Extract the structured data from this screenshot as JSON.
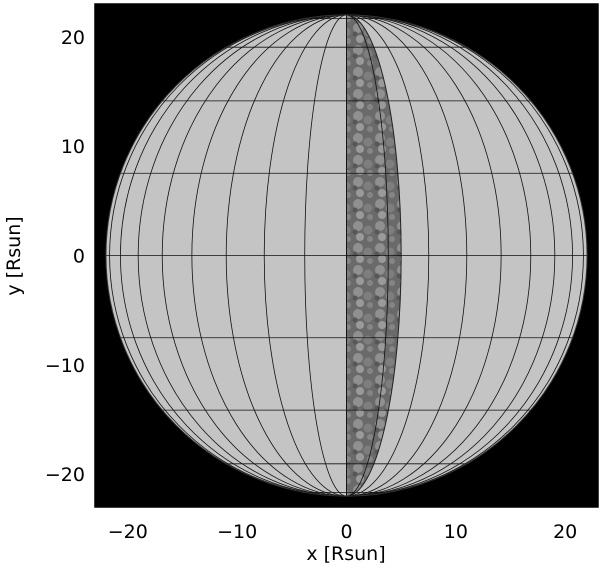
{
  "chart_data": {
    "type": "scatter",
    "description_kind": "stellar-sphere-projection",
    "xlabel": "x [Rsun]",
    "ylabel": "y [Rsun]",
    "xlim": [
      -23,
      23
    ],
    "ylim": [
      -23,
      23
    ],
    "x_ticks": [
      -20,
      -10,
      0,
      10,
      20
    ],
    "y_ticks": [
      -20,
      -10,
      0,
      10,
      20
    ],
    "x_tick_labels": [
      "−20",
      "−10",
      "0",
      "10",
      "20"
    ],
    "y_tick_labels": [
      "−20",
      "−10",
      "0",
      "10",
      "20"
    ],
    "sphere_radius": 22,
    "meridian_count": 18,
    "latitude_lines_deg": [
      -80,
      -60,
      -40,
      -20,
      0,
      20,
      40,
      60,
      80
    ],
    "textured_band_x_range": [
      0,
      5
    ],
    "colors": {
      "background": "#000000",
      "sphere_fill": "#c4c4c4",
      "grid_line": "#111111",
      "band_fill": "#6a6a6a",
      "band_cell": "#8e8e8e"
    }
  }
}
